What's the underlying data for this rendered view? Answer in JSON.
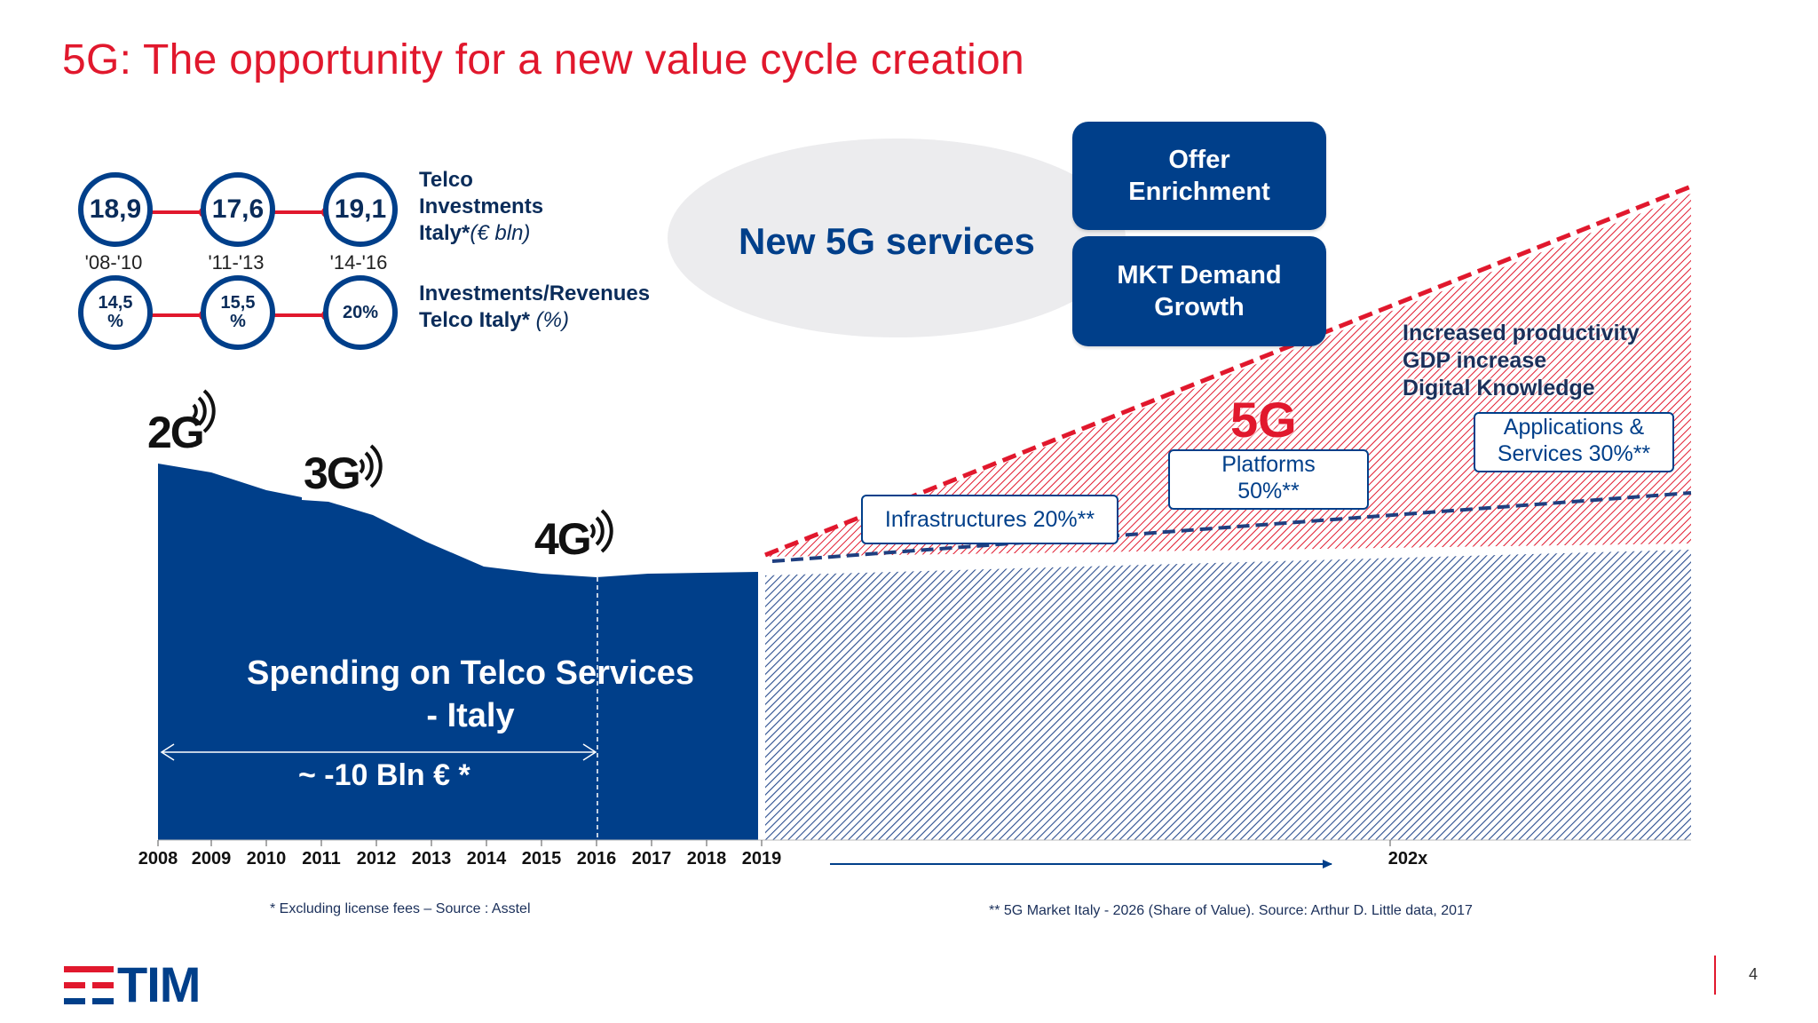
{
  "title": "5G: The opportunity for a new value cycle creation",
  "kpis": {
    "investments": {
      "values": [
        "18,9",
        "17,6",
        "19,1"
      ],
      "label_line1": "Telco",
      "label_line2": "Investments",
      "label_line3_prefix": "Italy*",
      "label_line3_unit": "(€ bln)"
    },
    "periods": [
      "'08-'10",
      "'11-'13",
      "'14-'16"
    ],
    "ratio": {
      "values": [
        "14,5 %",
        "15,5 %",
        "20%"
      ],
      "label_line1": "Investments/Revenues",
      "label_line2_prefix": "Telco Italy*",
      "label_line2_unit": "(%)"
    }
  },
  "services": {
    "ellipse_label": "New 5G services",
    "box_offer": "Offer Enrichment",
    "box_demand": "MKT Demand Growth"
  },
  "generations": [
    "2G",
    "3G",
    "4G",
    "5G"
  ],
  "spending": {
    "label_line1": "Spending on Telco Services",
    "label_line2": "- Italy",
    "delta": "~ -10 Bln € *"
  },
  "impacts": [
    "Increased productivity",
    "GDP increase",
    "Digital Knowledge"
  ],
  "callouts": {
    "infrastructures": "Infrastructures 20%**",
    "platforms_line1": "Platforms",
    "platforms_line2": "50%**",
    "applications_line1": "Applications &",
    "applications_line2": "Services 30%**"
  },
  "x_axis": {
    "years": [
      "2008",
      "2009",
      "2010",
      "2011",
      "2012",
      "2013",
      "2014",
      "2015",
      "2016",
      "2017",
      "2018",
      "2019"
    ],
    "future_label": "202x"
  },
  "notes": {
    "left": "* Excluding license fees – Source : Asstel",
    "right": "** 5G Market Italy - 2026 (Share of Value). Source: Arthur D. Little data, 2017"
  },
  "logo_text": "TIM",
  "page_number": "4",
  "colors": {
    "brand_blue": "#003f8a",
    "brand_red": "#e1182d"
  },
  "chart_data": {
    "type": "area",
    "x": [
      "2008",
      "2009",
      "2010",
      "2011",
      "2012",
      "2013",
      "2014",
      "2015",
      "2016",
      "2017",
      "2018",
      "2019"
    ],
    "ylabel": ""
  }
}
